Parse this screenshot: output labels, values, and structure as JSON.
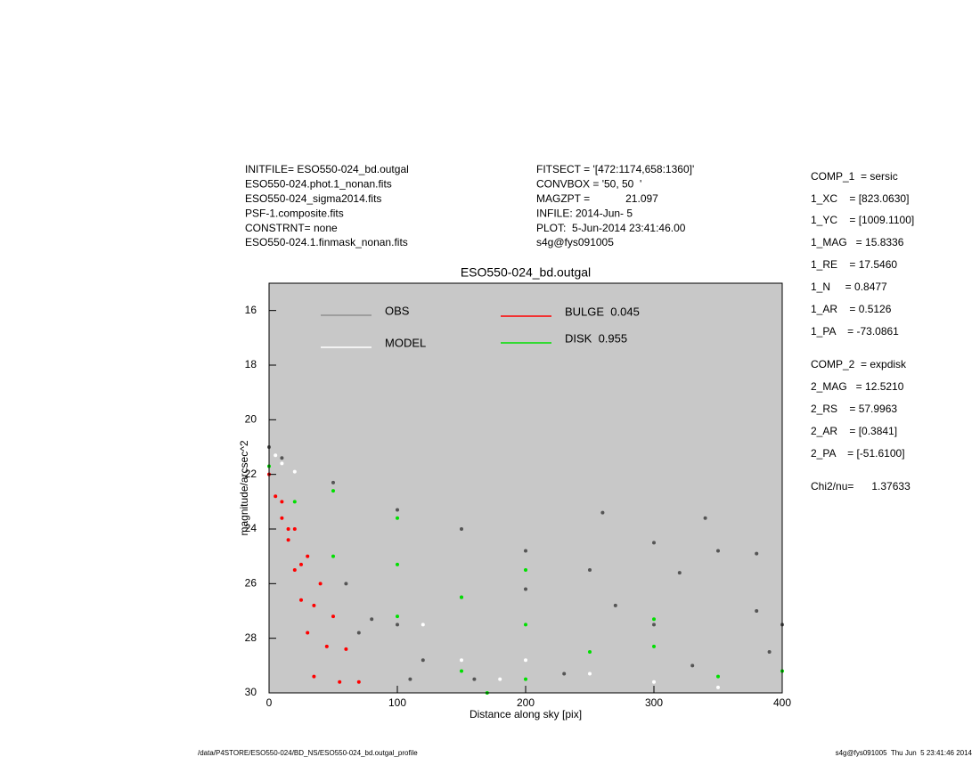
{
  "header": {
    "left": [
      "INITFILE= ESO550-024_bd.outgal",
      "ESO550-024.phot.1_nonan.fits",
      "ESO550-024_sigma2014.fits",
      "PSF-1.composite.fits",
      "CONSTRNT= none",
      "ESO550-024.1.finmask_nonan.fits"
    ],
    "middle": [
      "FITSECT = '[472:1174,658:1360]'",
      "CONVBOX = '50, 50  '",
      "MAGZPT =            21.097",
      "INFILE: 2014-Jun- 5",
      "PLOT:  5-Jun-2014 23:41:46.00",
      "s4g@fys091005"
    ]
  },
  "params": [
    "COMP_1  = sersic",
    "1_XC    = [823.0630]",
    "1_YC    = [1009.1100]",
    "1_MAG   = 15.8336",
    "1_RE    = 17.5460",
    "1_N     = 0.8477",
    "1_AR    = 0.5126",
    "1_PA    = -73.0861",
    "COMP_2  = expdisk",
    "2_MAG   = 12.5210",
    "2_RS    = 57.9963",
    "2_AR    = [0.3841]",
    "2_PA    = [-51.6100]",
    "Chi2/nu=      1.37633"
  ],
  "footer": {
    "left": "/data/P4STORE/ESO550-024/BD_NS/ESO550-024_bd.outgal_profile",
    "right": "s4g@fys091005  Thu Jun  5 23:41:46 2014"
  },
  "chart_data": {
    "type": "scatter",
    "title": "ESO550-024_bd.outgal",
    "x_label": "Distance along sky [pix]",
    "y_label": "magnitude/arcsec^2",
    "xlim": [
      0,
      400
    ],
    "xticks": [
      0,
      100,
      200,
      300,
      400
    ],
    "ylim": [
      30,
      15
    ],
    "yticks": [
      16,
      18,
      20,
      22,
      24,
      26,
      28,
      30
    ],
    "background": "#c8c8c8",
    "series": [
      {
        "name": "OBS",
        "color": "#555555",
        "x": [
          0,
          10,
          50,
          100,
          150,
          200,
          250,
          300,
          350,
          380,
          320,
          260,
          340,
          150,
          100,
          80,
          120,
          160,
          300,
          380,
          400,
          200,
          270,
          60,
          70,
          230,
          330,
          390,
          110
        ],
        "values": [
          21,
          21.4,
          22.3,
          23.3,
          24,
          24.8,
          25.5,
          24.5,
          24.8,
          24.9,
          25.6,
          23.4,
          23.6,
          26.5,
          27.5,
          27.3,
          28.8,
          29.5,
          27.5,
          27,
          27.5,
          26.2,
          26.8,
          26,
          27.8,
          29.3,
          29,
          28.5,
          29.5
        ]
      },
      {
        "name": "DISK  0.955",
        "color": "#00e000",
        "x": [
          0,
          50,
          100,
          200,
          300,
          400,
          20,
          50,
          100,
          150,
          170,
          100,
          200,
          300,
          250,
          350,
          150,
          200
        ],
        "values": [
          21.7,
          22.6,
          23.6,
          25.5,
          27.3,
          29.2,
          23,
          25,
          27.2,
          29.2,
          30,
          25.3,
          27.5,
          28.3,
          28.5,
          29.4,
          26.5,
          29.5
        ]
      },
      {
        "name": "MODEL",
        "color": "#ffffff",
        "x": [
          5,
          10,
          20,
          200,
          250,
          300,
          350,
          180,
          150,
          120
        ],
        "values": [
          21.3,
          21.6,
          21.9,
          28.8,
          29.3,
          29.6,
          29.8,
          29.5,
          28.8,
          27.5
        ]
      },
      {
        "name": "BULGE  0.045",
        "color": "#ff0000",
        "x": [
          0,
          5,
          10,
          15,
          20,
          25,
          30,
          35,
          10,
          20,
          30,
          40,
          50,
          60,
          70,
          15,
          25,
          35,
          45,
          55
        ],
        "values": [
          22,
          22.8,
          23.6,
          24.4,
          25.5,
          26.6,
          27.8,
          29.4,
          23,
          24,
          25,
          26,
          27.2,
          28.4,
          29.6,
          24,
          25.3,
          26.8,
          28.3,
          29.6
        ]
      }
    ]
  }
}
